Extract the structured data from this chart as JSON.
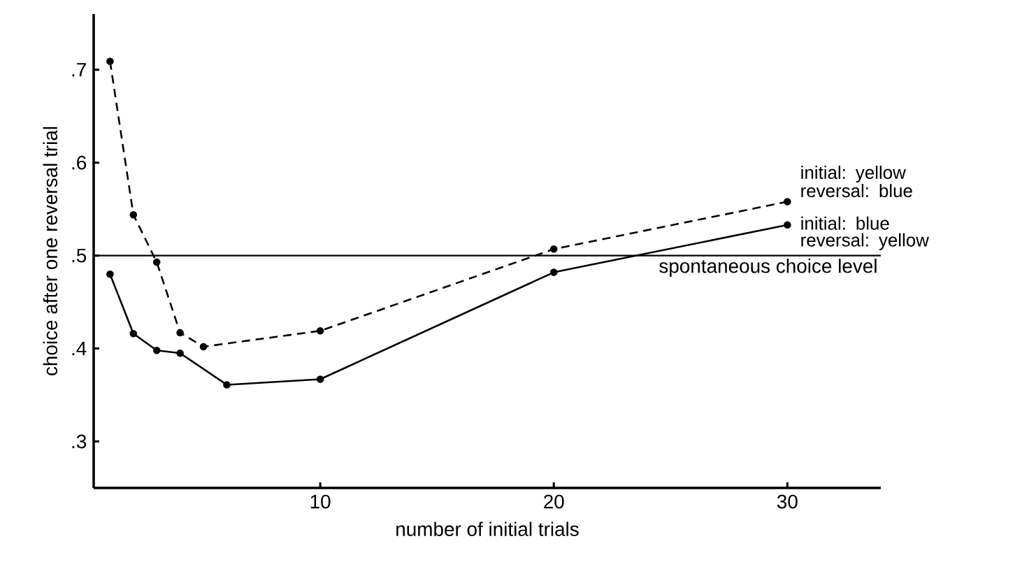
{
  "chart_data": {
    "type": "line",
    "xlabel": "number of initial trials",
    "ylabel": "choice after one reversal trial",
    "xlim": [
      0.3,
      34
    ],
    "ylim": [
      0.25,
      0.76
    ],
    "xticks": [
      10,
      20,
      30
    ],
    "yticks": [
      {
        "value": 0.3,
        "label": ".3"
      },
      {
        "value": 0.4,
        "label": ".4"
      },
      {
        "value": 0.5,
        "label": ".5"
      },
      {
        "value": 0.6,
        "label": ".6"
      },
      {
        "value": 0.7,
        "label": ".7"
      }
    ],
    "grid": false,
    "marker": "circle",
    "series": [
      {
        "name": "initial: yellow reversal: blue",
        "color": "#000000",
        "line_style": "dashed",
        "x": [
          1,
          2,
          3,
          4,
          5,
          10,
          20,
          30
        ],
        "values": [
          0.709,
          0.544,
          0.493,
          0.417,
          0.402,
          0.419,
          0.507,
          0.558
        ]
      },
      {
        "name": "initial: blue reversal: yellow",
        "color": "#000000",
        "line_style": "solid",
        "x": [
          1,
          2,
          3,
          4,
          6,
          10,
          20,
          30
        ],
        "values": [
          0.48,
          0.416,
          0.398,
          0.395,
          0.361,
          0.367,
          0.482,
          0.533
        ]
      }
    ],
    "ref_lines": [
      {
        "axis": "y",
        "value": 0.5,
        "label": "spontaneous choice level",
        "color": "#000000",
        "line_style": "solid"
      }
    ]
  }
}
